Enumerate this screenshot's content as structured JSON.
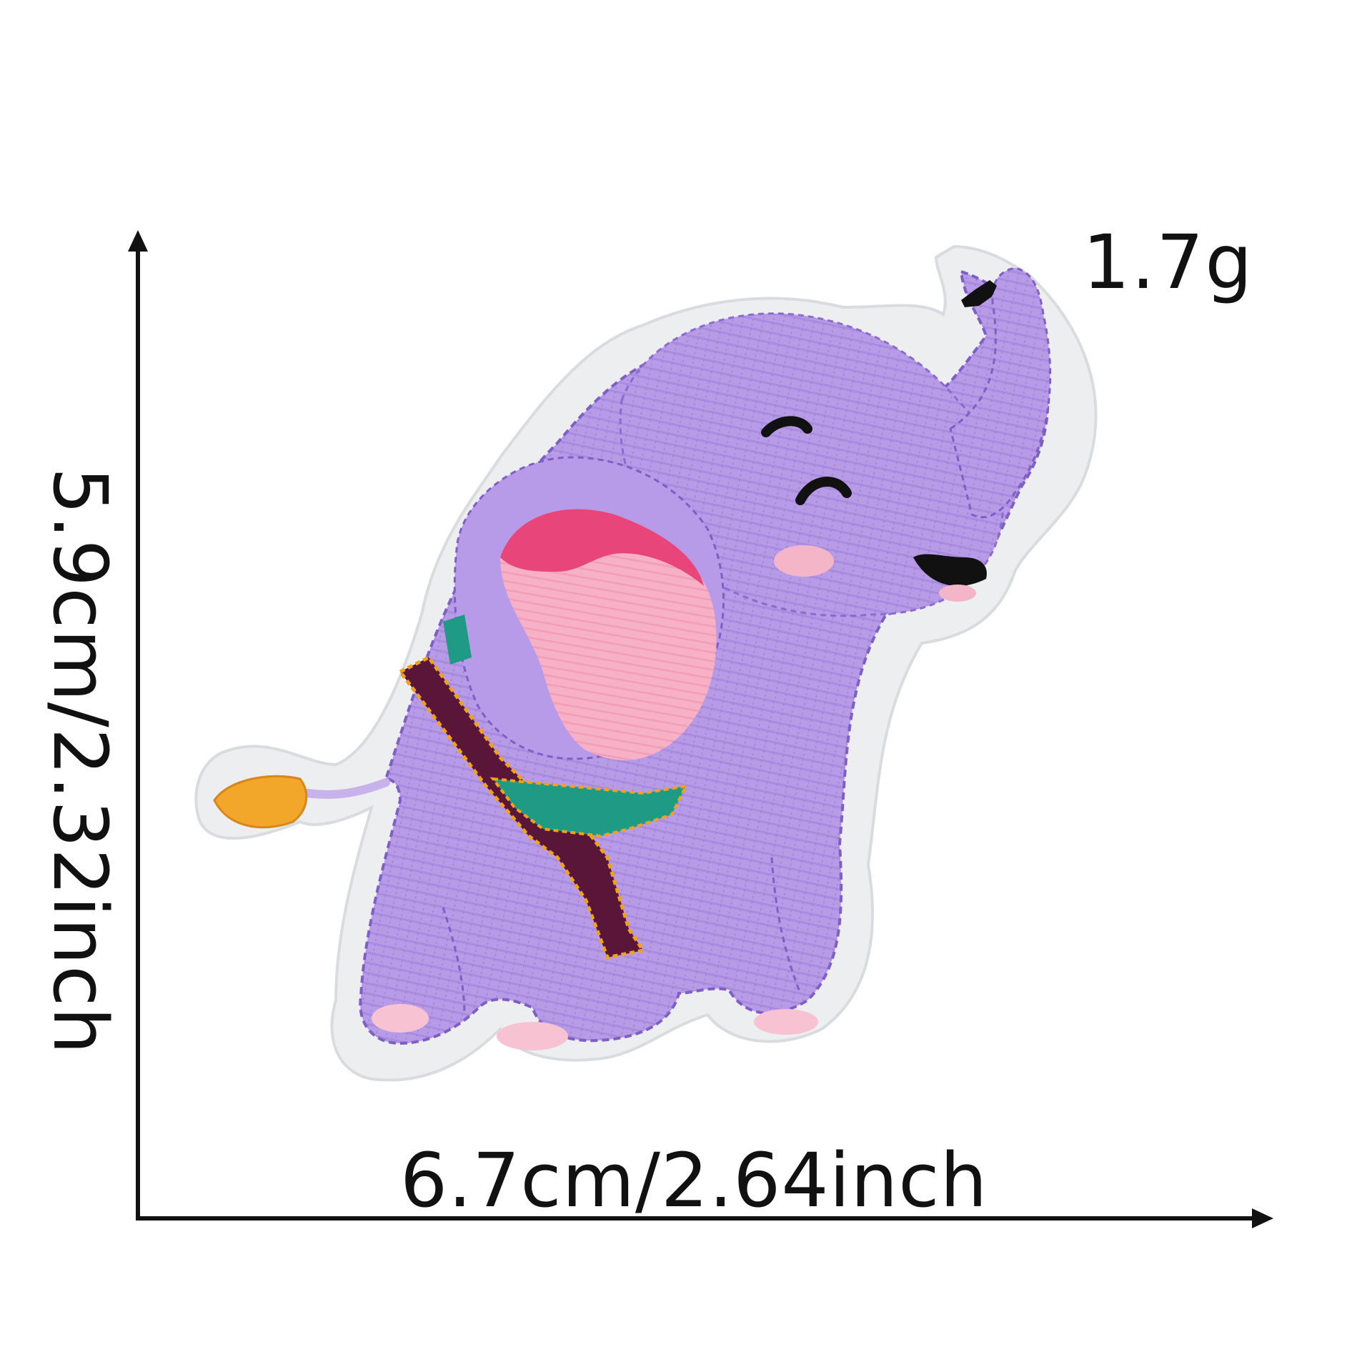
{
  "product": {
    "subject": "elephant-embroidered-patch",
    "colors": {
      "body": "#b79be6",
      "body_stitch": "#7e5fc4",
      "felt_border": "#eceef0",
      "ear_inner": "#f7a8c0",
      "ear_rim": "#e8457a",
      "blanket_dark": "#5a1638",
      "blanket_green": "#1f9a84",
      "blanket_trim": "#f0a21c",
      "tail_tuft": "#f2a62a",
      "cheek": "#f5b5c8",
      "toenail": "#f7c3d3",
      "features": "#111111"
    }
  },
  "dimensions": {
    "width_text": "6.7cm/2.64inch",
    "height_text": "5.9cm/2.32inch",
    "weight_text": "1.7g"
  },
  "arrows": {
    "color": "#111111"
  }
}
